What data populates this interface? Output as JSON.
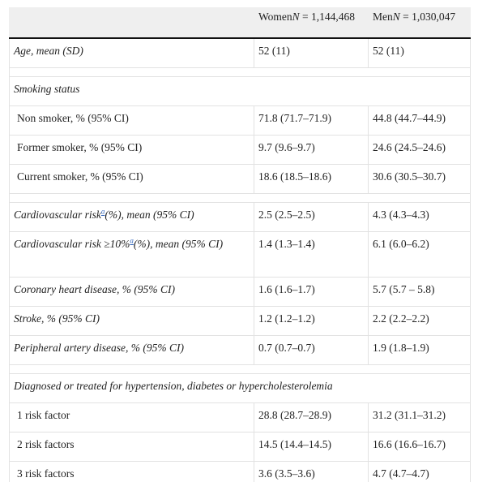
{
  "header": {
    "women_label": "Women",
    "women_n_label": "N",
    "women_n_value": " = 1,144,468",
    "men_label": "Men",
    "men_n_label": "N",
    "men_n_value": " = 1,030,047"
  },
  "rows": {
    "age": {
      "label": "Age, mean (SD)",
      "women": "52 (11)",
      "men": "52 (11)"
    },
    "smoking_header": "Smoking status",
    "non_smoker": {
      "label": "Non smoker, % (95% CI)",
      "women": "71.8 (71.7–71.9)",
      "men": "44.8 (44.7–44.9)"
    },
    "former_smoker": {
      "label": "Former smoker, % (95% CI)",
      "women": "9.7 (9.6–9.7)",
      "men": "24.6 (24.5–24.6)"
    },
    "current_smoker": {
      "label": "Current smoker, % (95% CI)",
      "women": "18.6 (18.5–18.6)",
      "men": "30.6 (30.5–30.7)"
    },
    "cv_risk": {
      "label_a": "Cardiovascular risk",
      "footnote": "a",
      "label_b": "(%), mean (95% CI)",
      "women": "2.5 (2.5–2.5)",
      "men": "4.3 (4.3–4.3)"
    },
    "cv_risk10": {
      "label_a": "Cardiovascular risk ≥10%",
      "footnote": "a",
      "label_b": "(%), mean (95% CI)",
      "women": "1.4 (1.3–1.4)",
      "men": "6.1 (6.0–6.2)"
    },
    "chd": {
      "label": "Coronary heart disease, % (95% CI)",
      "women": "1.6 (1.6–1.7)",
      "men": "5.7 (5.7 – 5.8)"
    },
    "stroke": {
      "label": "Stroke, % (95% CI)",
      "women": "1.2 (1.2–1.2)",
      "men": "2.2 (2.2–2.2)"
    },
    "pad": {
      "label": "Peripheral artery disease, % (95% CI)",
      "women": "0.7 (0.7–0.7)",
      "men": "1.9 (1.8–1.9)"
    },
    "diagnosed_header": "Diagnosed or treated for hypertension, diabetes or hypercholesterolemia",
    "rf1": {
      "label": "1 risk factor",
      "women": "28.8 (28.7–28.9)",
      "men": "31.2 (31.1–31.2)"
    },
    "rf2": {
      "label": "2 risk factors",
      "women": "14.5 (14.4–14.5)",
      "men": "16.6 (16.6–16.7)"
    },
    "rf3": {
      "label": "3 risk factors",
      "women": "3.6 (3.5–3.6)",
      "men": "4.7 (4.7–4.7)"
    }
  },
  "colors": {
    "header_bg": "#efefef",
    "rule": "#111111",
    "grid": "#e2e2e2",
    "link": "#3366bb"
  }
}
